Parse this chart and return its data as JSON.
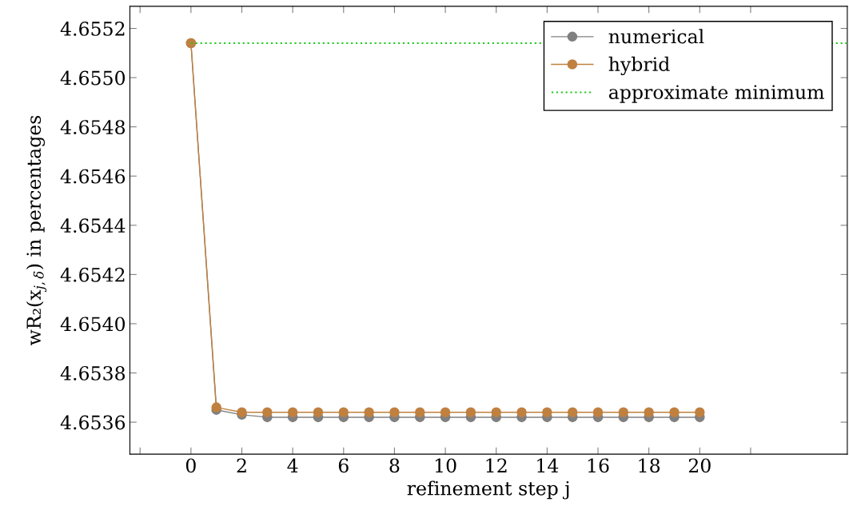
{
  "chart_data": {
    "type": "line",
    "xlabel": "refinement step j",
    "ylabel": "wR₂(x$_{j,δ}$) in percentages",
    "x": [
      0,
      1,
      2,
      3,
      4,
      5,
      6,
      7,
      8,
      9,
      10,
      11,
      12,
      13,
      14,
      15,
      16,
      17,
      18,
      19,
      20
    ],
    "series": [
      {
        "name": "numerical",
        "color": "#808080",
        "values": [
          4.65514,
          4.65365,
          4.65363,
          4.65362,
          4.65362,
          4.65362,
          4.65362,
          4.65362,
          4.65362,
          4.65362,
          4.65362,
          4.65362,
          4.65362,
          4.65362,
          4.65362,
          4.65362,
          4.65362,
          4.65362,
          4.65362,
          4.65362,
          4.65362
        ]
      },
      {
        "name": "hybrid",
        "color": "#c0803f",
        "values": [
          4.65514,
          4.65366,
          4.65364,
          4.65364,
          4.65364,
          4.65364,
          4.65364,
          4.65364,
          4.65364,
          4.65364,
          4.65364,
          4.65364,
          4.65364,
          4.65364,
          4.65364,
          4.65364,
          4.65364,
          4.65364,
          4.65364,
          4.65364,
          4.65364
        ]
      },
      {
        "name": "approximate minimum",
        "color": "#22cc22",
        "x": [
          0,
          25.8
        ],
        "values": [
          4.65514,
          4.65514
        ],
        "marker": "none",
        "line_style": "dotted"
      }
    ],
    "marker": "circle",
    "line_style": "solid",
    "xlim": [
      -2.4,
      25.8
    ],
    "ylim": [
      4.65347,
      4.65529
    ],
    "xticks": [
      {
        "value": -2,
        "label": null
      },
      0,
      2,
      4,
      6,
      8,
      10,
      12,
      14,
      16,
      18,
      20,
      {
        "value": 22,
        "label": null
      }
    ],
    "yticks": [
      {
        "value": 4.6536,
        "label": "4.6536"
      },
      {
        "value": 4.6538,
        "label": "4.6538"
      },
      {
        "value": 4.654,
        "label": "4.6540"
      },
      {
        "value": 4.6542,
        "label": "4.6542"
      },
      {
        "value": 4.6544,
        "label": "4.6544"
      },
      {
        "value": 4.6546,
        "label": "4.6546"
      },
      {
        "value": 4.6548,
        "label": "4.6548"
      },
      {
        "value": 4.655,
        "label": "4.6550"
      },
      {
        "value": 4.6552,
        "label": "4.6552"
      }
    ],
    "grid": false,
    "legend": "top right"
  }
}
